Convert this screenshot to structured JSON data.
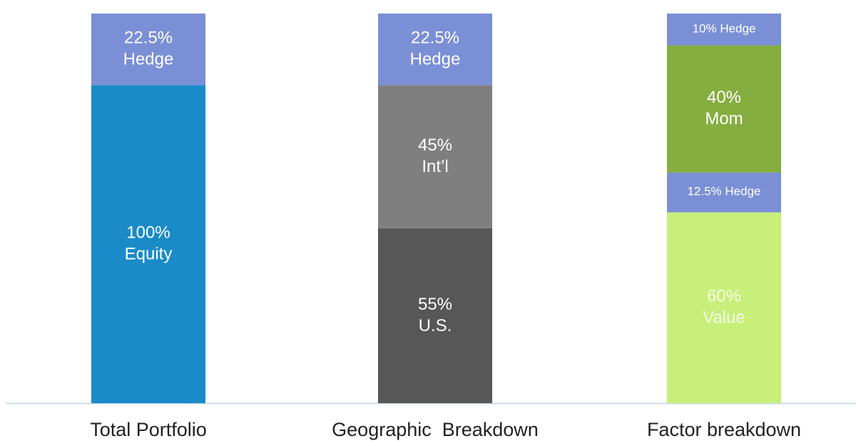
{
  "chart_data": {
    "type": "stacked-bar",
    "bars": [
      {
        "category": "Total Portfolio",
        "segments": [
          {
            "name": "Equity",
            "value": 100,
            "value_label": "100%",
            "color": "#1a8bc7"
          },
          {
            "name": "Hedge",
            "value": 22.5,
            "value_label": "22.5%",
            "color": "#7a8fd6"
          }
        ]
      },
      {
        "category": "Geographic  Breakdown",
        "segments": [
          {
            "name": "U.S.",
            "value": 55,
            "value_label": "55%",
            "color": "#575757"
          },
          {
            "name": "Int’l",
            "value": 45,
            "value_label": "45%",
            "color": "#7f7f7f"
          },
          {
            "name": "Hedge",
            "value": 22.5,
            "value_label": "22.5%",
            "color": "#7a8fd6"
          }
        ]
      },
      {
        "category": "Factor breakdown",
        "segments": [
          {
            "name": "Value",
            "value": 60,
            "value_label": "60%",
            "color": "#c8ef7a"
          },
          {
            "name": "Hedge",
            "value": 12.5,
            "value_label": "12.5%",
            "color": "#7a8fd6"
          },
          {
            "name": "Mom",
            "value": 40,
            "value_label": "40%",
            "color": "#86ad3f"
          },
          {
            "name": "Hedge",
            "value": 10,
            "value_label": "10%",
            "color": "#7a8fd6"
          }
        ]
      }
    ]
  }
}
